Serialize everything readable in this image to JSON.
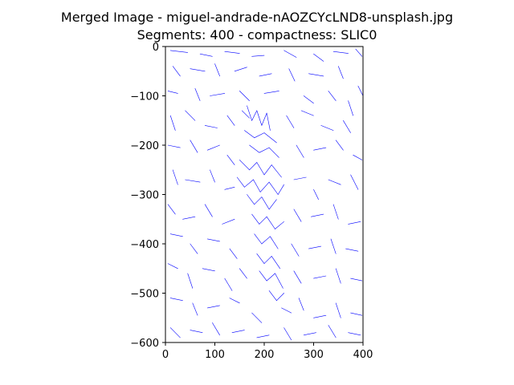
{
  "chart_data": {
    "type": "scatter",
    "title_line1": "Merged Image - miguel-andrade-nAOZCYcLND8-unsplash.jpg",
    "title_line2": "Segments: 400 - compactness: SLIC0",
    "xlabel": "",
    "ylabel": "",
    "xlim": [
      0,
      400
    ],
    "ylim": [
      -600,
      0
    ],
    "x_ticks": [
      0,
      100,
      200,
      300,
      400
    ],
    "y_ticks": [
      0,
      -100,
      -200,
      -300,
      -400,
      -500,
      -600
    ],
    "grid": false,
    "line_color": "#0000ff",
    "segments": [
      [
        [
          10,
          -8
        ],
        [
          45,
          -12
        ]
      ],
      [
        [
          70,
          -15
        ],
        [
          95,
          -20
        ]
      ],
      [
        [
          120,
          -10
        ],
        [
          150,
          -14
        ]
      ],
      [
        [
          175,
          -20
        ],
        [
          200,
          -18
        ]
      ],
      [
        [
          240,
          -8
        ],
        [
          265,
          -22
        ]
      ],
      [
        [
          300,
          -15
        ],
        [
          320,
          -30
        ]
      ],
      [
        [
          340,
          -10
        ],
        [
          370,
          -14
        ]
      ],
      [
        [
          385,
          -5
        ],
        [
          398,
          -20
        ]
      ],
      [
        [
          15,
          -40
        ],
        [
          30,
          -60
        ]
      ],
      [
        [
          50,
          -45
        ],
        [
          80,
          -50
        ]
      ],
      [
        [
          100,
          -35
        ],
        [
          110,
          -60
        ]
      ],
      [
        [
          140,
          -50
        ],
        [
          165,
          -42
        ]
      ],
      [
        [
          190,
          -60
        ],
        [
          215,
          -55
        ]
      ],
      [
        [
          250,
          -45
        ],
        [
          262,
          -70
        ]
      ],
      [
        [
          290,
          -55
        ],
        [
          320,
          -60
        ]
      ],
      [
        [
          350,
          -40
        ],
        [
          360,
          -65
        ]
      ],
      [
        [
          390,
          -80
        ],
        [
          400,
          -100
        ]
      ],
      [
        [
          5,
          -90
        ],
        [
          25,
          -95
        ]
      ],
      [
        [
          60,
          -85
        ],
        [
          70,
          -110
        ]
      ],
      [
        [
          90,
          -100
        ],
        [
          120,
          -95
        ]
      ],
      [
        [
          150,
          -90
        ],
        [
          170,
          -110
        ]
      ],
      [
        [
          200,
          -95
        ],
        [
          230,
          -90
        ]
      ],
      [
        [
          280,
          -100
        ],
        [
          300,
          -115
        ]
      ],
      [
        [
          330,
          -90
        ],
        [
          345,
          -110
        ]
      ],
      [
        [
          370,
          -110
        ],
        [
          380,
          -140
        ]
      ],
      [
        [
          10,
          -140
        ],
        [
          20,
          -170
        ]
      ],
      [
        [
          40,
          -130
        ],
        [
          60,
          -150
        ]
      ],
      [
        [
          80,
          -160
        ],
        [
          105,
          -165
        ]
      ],
      [
        [
          125,
          -140
        ],
        [
          140,
          -160
        ]
      ],
      [
        [
          155,
          -130
        ],
        [
          170,
          -145
        ]
      ],
      [
        [
          245,
          -140
        ],
        [
          260,
          -165
        ]
      ],
      [
        [
          275,
          -130
        ],
        [
          300,
          -140
        ]
      ],
      [
        [
          315,
          -160
        ],
        [
          340,
          -170
        ]
      ],
      [
        [
          360,
          -150
        ],
        [
          375,
          -175
        ]
      ],
      [
        [
          5,
          -200
        ],
        [
          30,
          -205
        ]
      ],
      [
        [
          50,
          -190
        ],
        [
          65,
          -215
        ]
      ],
      [
        [
          85,
          -210
        ],
        [
          110,
          -200
        ]
      ],
      [
        [
          125,
          -220
        ],
        [
          140,
          -240
        ]
      ],
      [
        [
          265,
          -200
        ],
        [
          280,
          -225
        ]
      ],
      [
        [
          300,
          -210
        ],
        [
          325,
          -205
        ]
      ],
      [
        [
          345,
          -190
        ],
        [
          360,
          -210
        ]
      ],
      [
        [
          380,
          -220
        ],
        [
          398,
          -230
        ]
      ],
      [
        [
          15,
          -250
        ],
        [
          25,
          -280
        ]
      ],
      [
        [
          40,
          -270
        ],
        [
          70,
          -275
        ]
      ],
      [
        [
          90,
          -250
        ],
        [
          100,
          -275
        ]
      ],
      [
        [
          120,
          -290
        ],
        [
          140,
          -285
        ]
      ],
      [
        [
          260,
          -270
        ],
        [
          285,
          -265
        ]
      ],
      [
        [
          300,
          -290
        ],
        [
          310,
          -310
        ]
      ],
      [
        [
          330,
          -270
        ],
        [
          355,
          -280
        ]
      ],
      [
        [
          375,
          -260
        ],
        [
          390,
          -290
        ]
      ],
      [
        [
          5,
          -320
        ],
        [
          20,
          -340
        ]
      ],
      [
        [
          35,
          -350
        ],
        [
          60,
          -345
        ]
      ],
      [
        [
          80,
          -320
        ],
        [
          95,
          -345
        ]
      ],
      [
        [
          115,
          -360
        ],
        [
          140,
          -350
        ]
      ],
      [
        [
          260,
          -330
        ],
        [
          275,
          -355
        ]
      ],
      [
        [
          295,
          -345
        ],
        [
          320,
          -340
        ]
      ],
      [
        [
          340,
          -320
        ],
        [
          350,
          -350
        ]
      ],
      [
        [
          370,
          -360
        ],
        [
          395,
          -355
        ]
      ],
      [
        [
          10,
          -380
        ],
        [
          35,
          -385
        ]
      ],
      [
        [
          50,
          -400
        ],
        [
          65,
          -420
        ]
      ],
      [
        [
          85,
          -390
        ],
        [
          110,
          -395
        ]
      ],
      [
        [
          130,
          -410
        ],
        [
          145,
          -430
        ]
      ],
      [
        [
          255,
          -400
        ],
        [
          270,
          -425
        ]
      ],
      [
        [
          290,
          -410
        ],
        [
          315,
          -405
        ]
      ],
      [
        [
          335,
          -390
        ],
        [
          345,
          -420
        ]
      ],
      [
        [
          365,
          -410
        ],
        [
          390,
          -415
        ]
      ],
      [
        [
          5,
          -440
        ],
        [
          25,
          -450
        ]
      ],
      [
        [
          45,
          -460
        ],
        [
          55,
          -490
        ]
      ],
      [
        [
          75,
          -450
        ],
        [
          100,
          -455
        ]
      ],
      [
        [
          120,
          -470
        ],
        [
          135,
          -495
        ]
      ],
      [
        [
          150,
          -450
        ],
        [
          165,
          -470
        ]
      ],
      [
        [
          260,
          -455
        ],
        [
          275,
          -480
        ]
      ],
      [
        [
          300,
          -470
        ],
        [
          325,
          -465
        ]
      ],
      [
        [
          345,
          -450
        ],
        [
          355,
          -480
        ]
      ],
      [
        [
          375,
          -470
        ],
        [
          398,
          -475
        ]
      ],
      [
        [
          10,
          -510
        ],
        [
          35,
          -515
        ]
      ],
      [
        [
          55,
          -520
        ],
        [
          65,
          -545
        ]
      ],
      [
        [
          85,
          -530
        ],
        [
          110,
          -525
        ]
      ],
      [
        [
          130,
          -510
        ],
        [
          150,
          -520
        ]
      ],
      [
        [
          175,
          -540
        ],
        [
          195,
          -560
        ]
      ],
      [
        [
          235,
          -530
        ],
        [
          255,
          -540
        ]
      ],
      [
        [
          270,
          -510
        ],
        [
          280,
          -535
        ]
      ],
      [
        [
          300,
          -550
        ],
        [
          325,
          -545
        ]
      ],
      [
        [
          345,
          -520
        ],
        [
          355,
          -550
        ]
      ],
      [
        [
          375,
          -540
        ],
        [
          398,
          -545
        ]
      ],
      [
        [
          10,
          -570
        ],
        [
          30,
          -590
        ]
      ],
      [
        [
          50,
          -575
        ],
        [
          75,
          -580
        ]
      ],
      [
        [
          95,
          -560
        ],
        [
          110,
          -585
        ]
      ],
      [
        [
          135,
          -580
        ],
        [
          160,
          -575
        ]
      ],
      [
        [
          185,
          -590
        ],
        [
          210,
          -585
        ]
      ],
      [
        [
          240,
          -570
        ],
        [
          255,
          -595
        ]
      ],
      [
        [
          280,
          -585
        ],
        [
          305,
          -580
        ]
      ],
      [
        [
          330,
          -565
        ],
        [
          345,
          -590
        ]
      ],
      [
        [
          370,
          -580
        ],
        [
          395,
          -585
        ]
      ],
      [
        [
          165,
          -120
        ],
        [
          175,
          -150
        ]
      ],
      [
        [
          175,
          -150
        ],
        [
          185,
          -130
        ]
      ],
      [
        [
          185,
          -130
        ],
        [
          195,
          -160
        ]
      ],
      [
        [
          195,
          -160
        ],
        [
          205,
          -135
        ]
      ],
      [
        [
          205,
          -135
        ],
        [
          212,
          -170
        ]
      ],
      [
        [
          160,
          -170
        ],
        [
          180,
          -185
        ]
      ],
      [
        [
          180,
          -185
        ],
        [
          200,
          -175
        ]
      ],
      [
        [
          200,
          -175
        ],
        [
          225,
          -195
        ]
      ],
      [
        [
          170,
          -200
        ],
        [
          190,
          -215
        ]
      ],
      [
        [
          190,
          -215
        ],
        [
          210,
          -205
        ]
      ],
      [
        [
          210,
          -205
        ],
        [
          230,
          -225
        ]
      ],
      [
        [
          150,
          -230
        ],
        [
          170,
          -250
        ]
      ],
      [
        [
          170,
          -250
        ],
        [
          185,
          -235
        ]
      ],
      [
        [
          185,
          -235
        ],
        [
          200,
          -260
        ]
      ],
      [
        [
          200,
          -260
        ],
        [
          215,
          -240
        ]
      ],
      [
        [
          215,
          -240
        ],
        [
          235,
          -265
        ]
      ],
      [
        [
          145,
          -265
        ],
        [
          160,
          -285
        ]
      ],
      [
        [
          160,
          -285
        ],
        [
          178,
          -270
        ]
      ],
      [
        [
          178,
          -270
        ],
        [
          192,
          -295
        ]
      ],
      [
        [
          192,
          -295
        ],
        [
          210,
          -275
        ]
      ],
      [
        [
          210,
          -275
        ],
        [
          228,
          -300
        ]
      ],
      [
        [
          228,
          -300
        ],
        [
          240,
          -280
        ]
      ],
      [
        [
          165,
          -300
        ],
        [
          180,
          -320
        ]
      ],
      [
        [
          180,
          -320
        ],
        [
          195,
          -305
        ]
      ],
      [
        [
          195,
          -305
        ],
        [
          210,
          -330
        ]
      ],
      [
        [
          210,
          -330
        ],
        [
          225,
          -310
        ]
      ],
      [
        [
          175,
          -340
        ],
        [
          190,
          -360
        ]
      ],
      [
        [
          190,
          -360
        ],
        [
          205,
          -345
        ]
      ],
      [
        [
          205,
          -345
        ],
        [
          222,
          -370
        ]
      ],
      [
        [
          222,
          -370
        ],
        [
          240,
          -355
        ]
      ],
      [
        [
          180,
          -380
        ],
        [
          195,
          -400
        ]
      ],
      [
        [
          195,
          -400
        ],
        [
          212,
          -385
        ]
      ],
      [
        [
          212,
          -385
        ],
        [
          228,
          -410
        ]
      ],
      [
        [
          185,
          -420
        ],
        [
          200,
          -440
        ]
      ],
      [
        [
          200,
          -440
        ],
        [
          215,
          -425
        ]
      ],
      [
        [
          215,
          -425
        ],
        [
          232,
          -450
        ]
      ],
      [
        [
          190,
          -455
        ],
        [
          205,
          -475
        ]
      ],
      [
        [
          205,
          -475
        ],
        [
          222,
          -460
        ]
      ],
      [
        [
          222,
          -460
        ],
        [
          238,
          -490
        ]
      ],
      [
        [
          210,
          -495
        ],
        [
          225,
          -515
        ]
      ],
      [
        [
          225,
          -515
        ],
        [
          240,
          -500
        ]
      ]
    ]
  }
}
